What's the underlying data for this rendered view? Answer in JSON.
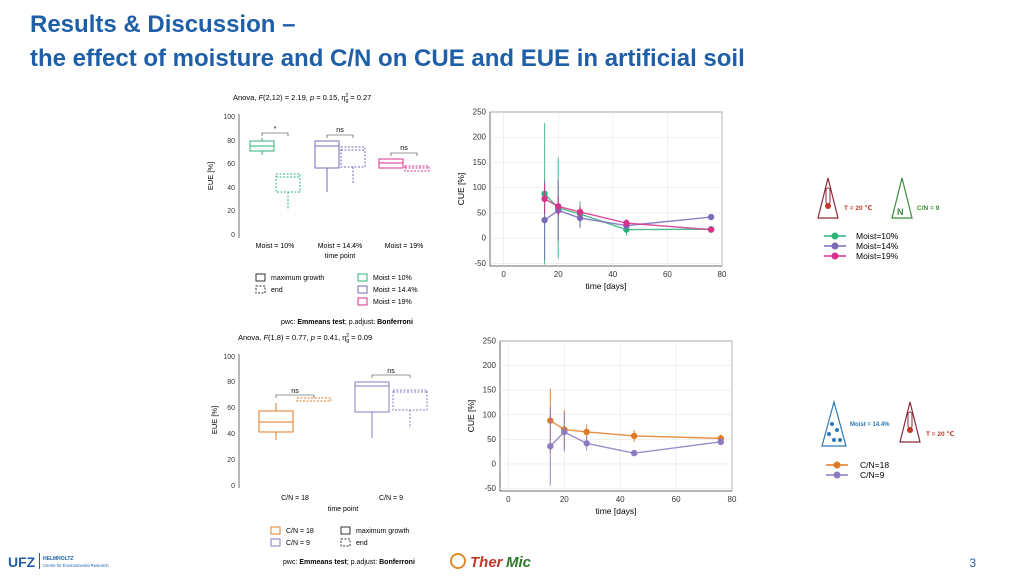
{
  "title": {
    "line1": "Results & Discussion –",
    "line2": "the effect of moisture and C/N on CUE and EUE in artificial soil"
  },
  "top_box": {
    "anova_prefix": "Anova, ",
    "anova_F": "F",
    "anova_text": "(2,12) = 2.19, ",
    "anova_p": "p",
    "anova_rest": " = 0.15, η",
    "anova_sub": "g",
    "anova_sup": "2",
    "anova_tail": " = 0.27",
    "ylabel": "EUE [%]",
    "yticks": [
      "0",
      "20",
      "40",
      "60",
      "80",
      "100"
    ],
    "categories": [
      "Moist = 10%",
      "Moist = 14.4%",
      "Moist = 19%"
    ],
    "xlabel": "time point",
    "sig": [
      "*",
      "ns",
      "ns"
    ],
    "legend_type": [
      "maximum growth",
      "end"
    ],
    "legend_groups": [
      "Moist = 10%",
      "Moist = 14.4%",
      "Moist = 19%"
    ],
    "pwc_prefix": "pwc: ",
    "pwc_bold1": "Emmeans test",
    "pwc_mid": "; p.adjust: ",
    "pwc_bold2": "Bonferroni"
  },
  "bottom_box": {
    "anova_prefix": "Anova, ",
    "anova_F": "F",
    "anova_text": "(1,8) = 0.77, ",
    "anova_p": "p",
    "anova_rest": " = 0.41, η",
    "anova_sub": "g",
    "anova_sup": "2",
    "anova_tail": " = 0.09",
    "ylabel": "EUE [%]",
    "yticks": [
      "0",
      "20",
      "40",
      "60",
      "80",
      "100"
    ],
    "categories": [
      "C/N = 18",
      "C/N = 9"
    ],
    "xlabel": "time point",
    "sig": [
      "ns",
      "ns"
    ],
    "legend_groups": [
      "C/N = 18",
      "C/N = 9"
    ],
    "legend_type": [
      "maximum growth",
      "end"
    ],
    "pwc_prefix": "pwc: ",
    "pwc_bold1": "Emmeans test",
    "pwc_mid": "; p.adjust: ",
    "pwc_bold2": "Bonferroni"
  },
  "colors": {
    "moist10": "#2db37a",
    "moist14": "#7b6ab8",
    "moist19": "#d6328a",
    "cn18": "#e07b25",
    "cn9": "#8c79c0",
    "title": "#1f5fa8"
  },
  "chart_data": [
    {
      "type": "line",
      "ylabel": "CUE [%]",
      "xlabel": "time [days]",
      "xlim": [
        -5,
        80
      ],
      "ylim": [
        -55,
        250
      ],
      "xticks": [
        0,
        20,
        40,
        60,
        80
      ],
      "yticks": [
        -50,
        0,
        50,
        100,
        150,
        200,
        250
      ],
      "grid": true,
      "series": [
        {
          "name": "Moist=10%",
          "x": [
            15,
            20,
            28,
            45,
            76
          ],
          "y": [
            88,
            60,
            48,
            17,
            18
          ],
          "err": [
            140,
            100,
            25,
            12,
            5
          ]
        },
        {
          "name": "Moist=14%",
          "x": [
            15,
            20,
            28,
            45,
            76
          ],
          "y": [
            36,
            55,
            40,
            25,
            42
          ],
          "err": [
            80,
            60,
            20,
            10,
            5
          ]
        },
        {
          "name": "Moist=19%",
          "x": [
            15,
            20,
            28,
            45,
            76
          ],
          "y": [
            78,
            63,
            52,
            30,
            17
          ],
          "err": [
            30,
            20,
            12,
            8,
            4
          ]
        }
      ]
    },
    {
      "type": "line",
      "ylabel": "CUE [%]",
      "xlabel": "time [days]",
      "xlim": [
        -3,
        80
      ],
      "ylim": [
        -55,
        250
      ],
      "xticks": [
        0,
        20,
        40,
        60,
        80
      ],
      "yticks": [
        -50,
        0,
        50,
        100,
        150,
        200,
        250
      ],
      "grid": true,
      "series": [
        {
          "name": "C/N=18",
          "x": [
            15,
            20,
            28,
            45,
            76
          ],
          "y": [
            88,
            70,
            65,
            57,
            52
          ],
          "err": [
            65,
            40,
            15,
            12,
            8
          ]
        },
        {
          "name": "C/N=9",
          "x": [
            15,
            20,
            28,
            45,
            76
          ],
          "y": [
            36,
            65,
            42,
            22,
            45
          ],
          "err": [
            80,
            40,
            15,
            6,
            6
          ]
        }
      ]
    }
  ],
  "legend_top": [
    "Moist=10%",
    "Moist=14%",
    "Moist=19%"
  ],
  "legend_bottom": [
    "C/N=18",
    "C/N=9"
  ],
  "icons_top": {
    "temp": "T = 20 ℃",
    "cn": "C/N = 9",
    "n_letter": "N"
  },
  "icons_bottom": {
    "moist": "Moist = 14.4%",
    "temp": "T = 20 ℃"
  },
  "footer": {
    "ufz_main": "UFZ",
    "ufz_sub1": "HELMHOLTZ",
    "ufz_sub2": "Centre for Environmental Research",
    "thermic_a": "Ther",
    "thermic_b": "Mic",
    "page_number": "3"
  }
}
